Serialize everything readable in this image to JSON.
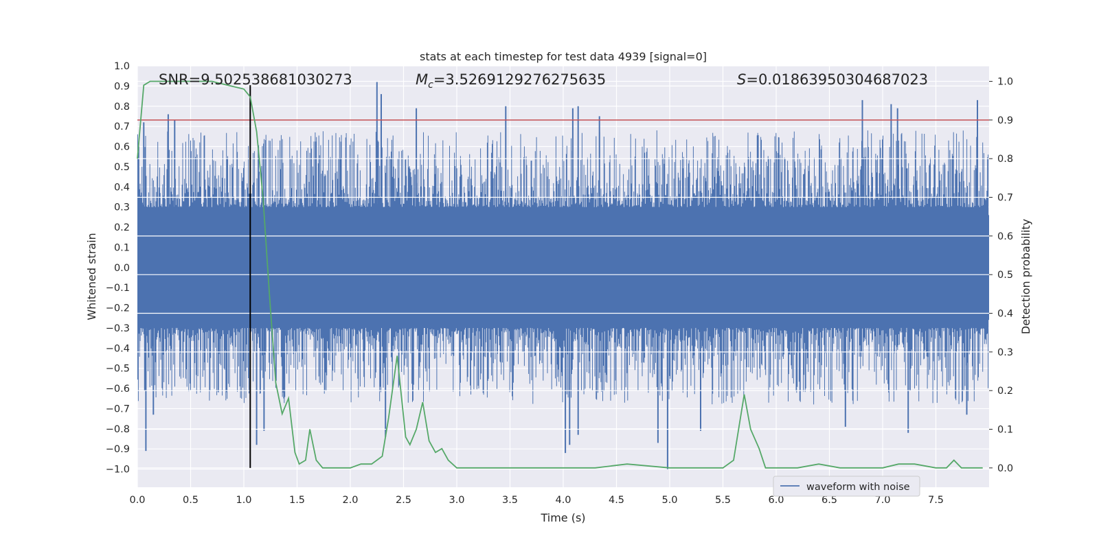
{
  "chart_data": {
    "type": "line",
    "title": "stats at each timestep for test data 4939 [signal=0]",
    "xlabel": "Time (s)",
    "ylabel": "Whitened strain",
    "y2label": "Detection probability",
    "xlim": [
      0.0,
      8.0
    ],
    "ylim": [
      -1.09,
      1.0
    ],
    "y2lim": [
      -0.05,
      1.04
    ],
    "xticks": [
      "0.0",
      "0.5",
      "1.0",
      "1.5",
      "2.0",
      "2.5",
      "3.0",
      "3.5",
      "4.0",
      "4.5",
      "5.0",
      "5.5",
      "6.0",
      "6.5",
      "7.0",
      "7.5"
    ],
    "yticks": [
      "1.0",
      "0.9",
      "0.8",
      "0.7",
      "0.6",
      "0.5",
      "0.4",
      "0.3",
      "0.2",
      "0.1",
      "0.0",
      "−0.1",
      "−0.2",
      "−0.3",
      "−0.4",
      "−0.5",
      "−0.6",
      "−0.7",
      "−0.8",
      "−0.9",
      "−1.0"
    ],
    "y2ticks": [
      "1.0",
      "0.9",
      "0.8",
      "0.7",
      "0.6",
      "0.5",
      "0.4",
      "0.3",
      "0.2",
      "0.1",
      "0.0"
    ],
    "grid": true,
    "stats": {
      "snr": "SNR=9.502538681030273",
      "mc_symbol": "M",
      "mc_sub": "c",
      "mc_value": "=3.5269129276275635",
      "s_symbol": "S",
      "s_value": "=0.01863950304687023"
    },
    "threshold": 0.9,
    "marker_time": 1.06,
    "legend": {
      "label": "waveform with noise",
      "location": "lower-right"
    },
    "colors": {
      "waveform": "#4c72b0",
      "probability": "#55a868",
      "threshold": "#c44e52",
      "marker": "#000000",
      "plot_background": "#eaeaf2",
      "grid": "#ffffff"
    },
    "waveform_spikes": [
      {
        "t": 0.06,
        "y": 0.72
      },
      {
        "t": 0.29,
        "y": 0.76
      },
      {
        "t": 0.35,
        "y": 0.73
      },
      {
        "t": 0.07,
        "y": -0.61
      },
      {
        "t": 0.08,
        "y": -0.91
      },
      {
        "t": 0.15,
        "y": -0.73
      },
      {
        "t": 1.12,
        "y": -0.88
      },
      {
        "t": 1.19,
        "y": -0.81
      },
      {
        "t": 2.25,
        "y": 0.92
      },
      {
        "t": 2.29,
        "y": 0.86
      },
      {
        "t": 2.62,
        "y": 0.79
      },
      {
        "t": 2.33,
        "y": -0.84
      },
      {
        "t": 3.46,
        "y": 0.8
      },
      {
        "t": 4.09,
        "y": 0.79
      },
      {
        "t": 4.14,
        "y": 0.8
      },
      {
        "t": 4.34,
        "y": 0.75
      },
      {
        "t": 4.02,
        "y": -0.92
      },
      {
        "t": 4.06,
        "y": -0.88
      },
      {
        "t": 4.14,
        "y": -0.83
      },
      {
        "t": 4.89,
        "y": -0.87
      },
      {
        "t": 4.98,
        "y": -1.0
      },
      {
        "t": 6.81,
        "y": 0.83
      },
      {
        "t": 7.08,
        "y": 0.81
      },
      {
        "t": 7.14,
        "y": 0.79
      },
      {
        "t": 7.89,
        "y": 0.83
      },
      {
        "t": 6.65,
        "y": -0.79
      },
      {
        "t": 7.24,
        "y": -0.82
      },
      {
        "t": 5.29,
        "y": -0.81
      },
      {
        "t": 7.79,
        "y": -0.73
      }
    ],
    "series": [
      {
        "name": "detection probability",
        "axis": "right",
        "x": [
          0.0,
          0.06,
          0.12,
          0.3,
          0.5,
          0.7,
          0.85,
          1.0,
          1.06,
          1.12,
          1.18,
          1.24,
          1.3,
          1.36,
          1.42,
          1.48,
          1.52,
          1.58,
          1.62,
          1.68,
          1.74,
          1.8,
          1.9,
          2.0,
          2.1,
          2.2,
          2.3,
          2.36,
          2.44,
          2.52,
          2.56,
          2.62,
          2.68,
          2.74,
          2.8,
          2.86,
          2.92,
          3.0,
          3.2,
          3.5,
          4.0,
          4.3,
          4.6,
          5.0,
          5.3,
          5.5,
          5.6,
          5.7,
          5.76,
          5.84,
          5.9,
          6.0,
          6.2,
          6.4,
          6.6,
          6.8,
          7.0,
          7.15,
          7.3,
          7.5,
          7.6,
          7.67,
          7.74,
          7.82,
          7.94
        ],
        "values": [
          0.8,
          0.99,
          1.0,
          1.0,
          1.0,
          1.0,
          0.99,
          0.98,
          0.96,
          0.87,
          0.7,
          0.45,
          0.22,
          0.14,
          0.18,
          0.04,
          0.01,
          0.02,
          0.1,
          0.02,
          0.0,
          0.0,
          0.0,
          0.0,
          0.01,
          0.01,
          0.03,
          0.13,
          0.29,
          0.08,
          0.06,
          0.1,
          0.17,
          0.07,
          0.04,
          0.05,
          0.02,
          0.0,
          0.0,
          0.0,
          0.0,
          0.0,
          0.01,
          0.0,
          0.0,
          0.0,
          0.02,
          0.19,
          0.1,
          0.05,
          0.0,
          0.0,
          0.0,
          0.01,
          0.0,
          0.0,
          0.0,
          0.01,
          0.01,
          0.0,
          0.0,
          0.02,
          0.0,
          0.0,
          0.0
        ]
      }
    ]
  }
}
